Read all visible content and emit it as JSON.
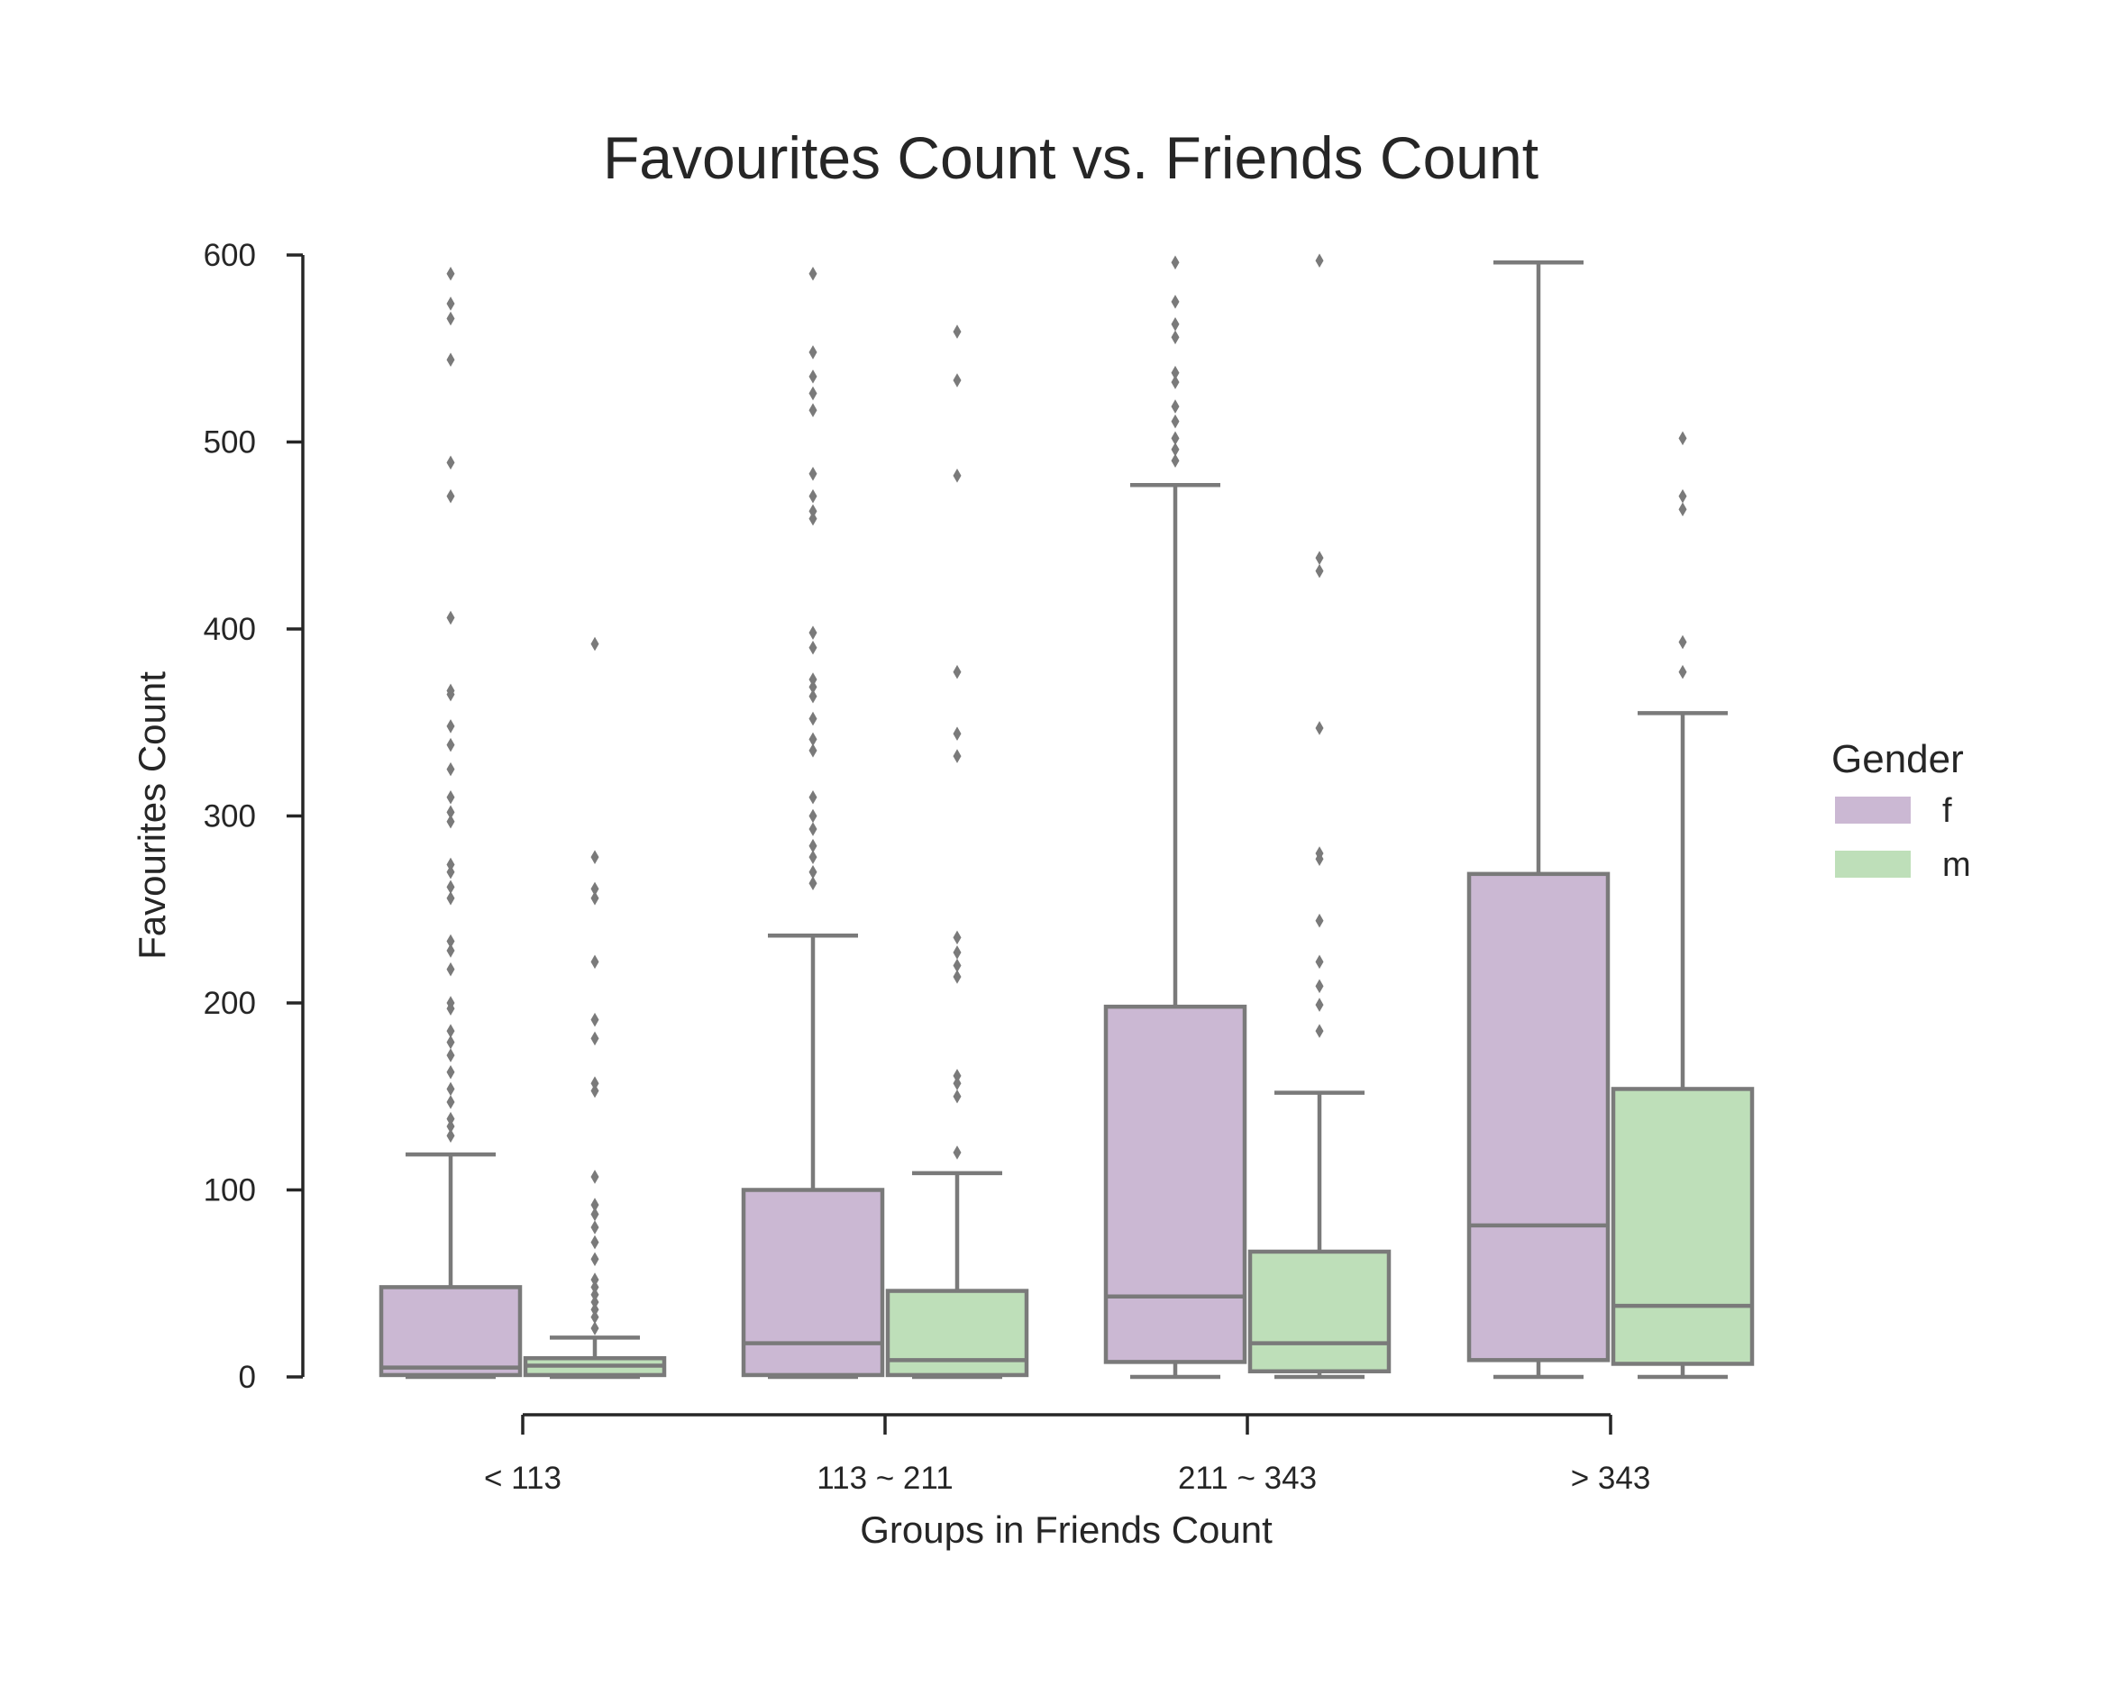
{
  "chart_data": {
    "type": "box",
    "title": "Favourites Count vs. Friends Count",
    "xlabel": "Groups in Friends Count",
    "ylabel": "Favourites Count",
    "ylim": [
      0,
      600
    ],
    "yticks": [
      0,
      100,
      200,
      300,
      400,
      500,
      600
    ],
    "categories": [
      "< 113",
      "113 ~ 211",
      "211 ~ 343",
      "> 343"
    ],
    "legend": {
      "title": "Gender",
      "placement": "right",
      "entries": [
        {
          "label": "f",
          "color": "#cbb8d3"
        },
        {
          "label": "m",
          "color": "#bedfb9"
        }
      ]
    },
    "series": [
      {
        "name": "f",
        "color": "#cbb8d3",
        "boxes": [
          {
            "whislo": 0,
            "q1": 1,
            "med": 5,
            "q3": 48,
            "whishi": 119,
            "fliers": [
              129,
              134,
              138,
              147,
              154,
              163,
              172,
              179,
              185,
              197,
              200,
              218,
              228,
              233,
              256,
              262,
              270,
              274,
              297,
              302,
              310,
              325,
              338,
              348,
              365,
              367,
              406,
              471,
              489,
              544,
              566,
              574,
              590
            ]
          },
          {
            "whislo": 0,
            "q1": 1,
            "med": 18,
            "q3": 100,
            "whishi": 236,
            "fliers": [
              264,
              270,
              278,
              284,
              293,
              300,
              310,
              335,
              341,
              352,
              364,
              369,
              373,
              390,
              398,
              459,
              463,
              471,
              483,
              517,
              526,
              535,
              548,
              590
            ]
          },
          {
            "whislo": 0,
            "q1": 8,
            "med": 43,
            "q3": 198,
            "whishi": 477,
            "fliers": [
              490,
              496,
              502,
              511,
              519,
              532,
              537,
              556,
              563,
              575,
              596
            ]
          },
          {
            "whislo": 0,
            "q1": 9,
            "med": 81,
            "q3": 269,
            "whishi": 596,
            "fliers": []
          }
        ]
      },
      {
        "name": "m",
        "color": "#bedfb9",
        "boxes": [
          {
            "whislo": 0,
            "q1": 1,
            "med": 6,
            "q3": 10,
            "whishi": 21,
            "fliers": [
              26,
              32,
              36,
              40,
              44,
              48,
              52,
              63,
              72,
              80,
              87,
              92,
              107,
              153,
              157,
              181,
              191,
              222,
              256,
              261,
              278,
              392
            ]
          },
          {
            "whislo": 0,
            "q1": 1,
            "med": 9,
            "q3": 46,
            "whishi": 109,
            "fliers": [
              120,
              150,
              157,
              161,
              214,
              220,
              227,
              235,
              332,
              344,
              377,
              482,
              533,
              559
            ]
          },
          {
            "whislo": 0,
            "q1": 3,
            "med": 18,
            "q3": 67,
            "whishi": 152,
            "fliers": [
              185,
              199,
              209,
              222,
              244,
              277,
              280,
              347,
              431,
              438,
              597
            ]
          },
          {
            "whislo": 0,
            "q1": 7,
            "med": 38,
            "q3": 154,
            "whishi": 355,
            "fliers": [
              377,
              393,
              464,
              471,
              502
            ]
          }
        ]
      }
    ]
  }
}
